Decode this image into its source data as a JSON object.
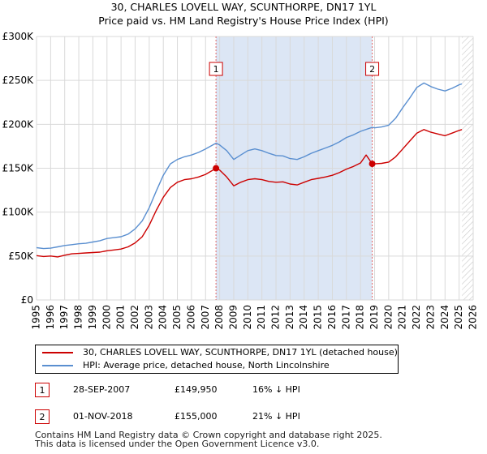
{
  "header": {
    "title": "30, CHARLES LOVELL WAY, SCUNTHORPE, DN17 1YL",
    "subtitle": "Price paid vs. HM Land Registry's House Price Index (HPI)"
  },
  "chart_data": {
    "type": "line",
    "title": "30, CHARLES LOVELL WAY, SCUNTHORPE, DN17 1YL",
    "subtitle": "Price paid vs. HM Land Registry's House Price Index (HPI)",
    "xlabel": "",
    "ylabel": "",
    "xlim": [
      1995,
      2026
    ],
    "ylim": [
      0,
      300000
    ],
    "y_ticks": [
      {
        "value": 0,
        "label": "£0"
      },
      {
        "value": 50000,
        "label": "£50K"
      },
      {
        "value": 100000,
        "label": "£100K"
      },
      {
        "value": 150000,
        "label": "£150K"
      },
      {
        "value": 200000,
        "label": "£200K"
      },
      {
        "value": 250000,
        "label": "£250K"
      },
      {
        "value": 300000,
        "label": "£300K"
      }
    ],
    "x_ticks": [
      "1995",
      "1996",
      "1997",
      "1998",
      "1999",
      "2000",
      "2001",
      "2002",
      "2003",
      "2004",
      "2005",
      "2006",
      "2007",
      "2008",
      "2009",
      "2010",
      "2011",
      "2012",
      "2013",
      "2014",
      "2015",
      "2016",
      "2017",
      "2018",
      "2019",
      "2020",
      "2021",
      "2022",
      "2023",
      "2024",
      "2025",
      "2026"
    ],
    "grid": true,
    "shaded_period": {
      "from": 2007.74,
      "to": 2018.83,
      "color": "#dce6f5"
    },
    "future_hatch_from": 2025.2,
    "series": [
      {
        "name": "30, CHARLES LOVELL WAY, SCUNTHORPE, DN17 1YL (detached house)",
        "color": "#cc0000",
        "points": [
          [
            1995.0,
            50500
          ],
          [
            1995.5,
            49500
          ],
          [
            1996.0,
            50000
          ],
          [
            1996.5,
            49000
          ],
          [
            1997.0,
            51000
          ],
          [
            1997.5,
            52500
          ],
          [
            1998.0,
            53000
          ],
          [
            1998.5,
            53500
          ],
          [
            1999.0,
            54000
          ],
          [
            1999.5,
            54500
          ],
          [
            2000.0,
            56000
          ],
          [
            2000.5,
            57000
          ],
          [
            2001.0,
            58000
          ],
          [
            2001.5,
            60500
          ],
          [
            2002.0,
            65000
          ],
          [
            2002.5,
            72000
          ],
          [
            2003.0,
            85000
          ],
          [
            2003.5,
            102000
          ],
          [
            2004.0,
            117000
          ],
          [
            2004.5,
            128000
          ],
          [
            2005.0,
            134000
          ],
          [
            2005.5,
            137000
          ],
          [
            2006.0,
            138000
          ],
          [
            2006.5,
            140000
          ],
          [
            2007.0,
            143000
          ],
          [
            2007.74,
            149950
          ],
          [
            2008.0,
            148000
          ],
          [
            2008.5,
            140000
          ],
          [
            2009.0,
            130000
          ],
          [
            2009.5,
            134000
          ],
          [
            2010.0,
            137000
          ],
          [
            2010.5,
            138000
          ],
          [
            2011.0,
            137000
          ],
          [
            2011.5,
            135000
          ],
          [
            2012.0,
            134000
          ],
          [
            2012.5,
            134500
          ],
          [
            2013.0,
            132000
          ],
          [
            2013.5,
            131000
          ],
          [
            2014.0,
            134000
          ],
          [
            2014.5,
            137000
          ],
          [
            2015.0,
            138500
          ],
          [
            2015.5,
            140000
          ],
          [
            2016.0,
            142000
          ],
          [
            2016.5,
            145000
          ],
          [
            2017.0,
            149000
          ],
          [
            2017.5,
            152000
          ],
          [
            2018.0,
            156000
          ],
          [
            2018.4,
            165000
          ],
          [
            2018.83,
            155000
          ],
          [
            2019.0,
            155000
          ],
          [
            2019.5,
            155500
          ],
          [
            2020.0,
            157000
          ],
          [
            2020.5,
            163000
          ],
          [
            2021.0,
            172000
          ],
          [
            2021.5,
            181000
          ],
          [
            2022.0,
            190000
          ],
          [
            2022.5,
            194000
          ],
          [
            2023.0,
            191000
          ],
          [
            2023.5,
            189000
          ],
          [
            2024.0,
            187000
          ],
          [
            2024.5,
            190000
          ],
          [
            2025.0,
            193000
          ],
          [
            2025.2,
            194000
          ]
        ]
      },
      {
        "name": "HPI: Average price, detached house, North Lincolnshire",
        "color": "#5a8fd0",
        "points": [
          [
            1995.0,
            59500
          ],
          [
            1995.5,
            58500
          ],
          [
            1996.0,
            59000
          ],
          [
            1996.5,
            60500
          ],
          [
            1997.0,
            62000
          ],
          [
            1997.5,
            63000
          ],
          [
            1998.0,
            64000
          ],
          [
            1998.5,
            64500
          ],
          [
            1999.0,
            66000
          ],
          [
            1999.5,
            67500
          ],
          [
            2000.0,
            70000
          ],
          [
            2000.5,
            71000
          ],
          [
            2001.0,
            72000
          ],
          [
            2001.5,
            75000
          ],
          [
            2002.0,
            81000
          ],
          [
            2002.5,
            90000
          ],
          [
            2003.0,
            105000
          ],
          [
            2003.5,
            124000
          ],
          [
            2004.0,
            142000
          ],
          [
            2004.5,
            155000
          ],
          [
            2005.0,
            160000
          ],
          [
            2005.5,
            163000
          ],
          [
            2006.0,
            165000
          ],
          [
            2006.5,
            168000
          ],
          [
            2007.0,
            172000
          ],
          [
            2007.74,
            178500
          ],
          [
            2008.0,
            176500
          ],
          [
            2008.5,
            170000
          ],
          [
            2009.0,
            160000
          ],
          [
            2009.5,
            165000
          ],
          [
            2010.0,
            170000
          ],
          [
            2010.5,
            172000
          ],
          [
            2011.0,
            170000
          ],
          [
            2011.5,
            167000
          ],
          [
            2012.0,
            164500
          ],
          [
            2012.5,
            164000
          ],
          [
            2013.0,
            161000
          ],
          [
            2013.5,
            160000
          ],
          [
            2014.0,
            163000
          ],
          [
            2014.5,
            167000
          ],
          [
            2015.0,
            170000
          ],
          [
            2015.5,
            173000
          ],
          [
            2016.0,
            176000
          ],
          [
            2016.5,
            180000
          ],
          [
            2017.0,
            185000
          ],
          [
            2017.5,
            188000
          ],
          [
            2018.0,
            192000
          ],
          [
            2018.83,
            196500
          ],
          [
            2019.0,
            196000
          ],
          [
            2019.5,
            197000
          ],
          [
            2020.0,
            199000
          ],
          [
            2020.5,
            207000
          ],
          [
            2021.0,
            219000
          ],
          [
            2021.5,
            230000
          ],
          [
            2022.0,
            242000
          ],
          [
            2022.5,
            247000
          ],
          [
            2023.0,
            243000
          ],
          [
            2023.5,
            240000
          ],
          [
            2024.0,
            238000
          ],
          [
            2024.5,
            241000
          ],
          [
            2025.0,
            245000
          ],
          [
            2025.2,
            246000
          ]
        ]
      }
    ],
    "sales": [
      {
        "label": "1",
        "year": 2007.74,
        "price": 149950
      },
      {
        "label": "2",
        "year": 2018.83,
        "price": 155000
      }
    ]
  },
  "legend": {
    "items": [
      {
        "label": "30, CHARLES LOVELL WAY, SCUNTHORPE, DN17 1YL (detached house)",
        "color": "#cc0000"
      },
      {
        "label": "HPI: Average price, detached house, North Lincolnshire",
        "color": "#5a8fd0"
      }
    ]
  },
  "sales_table": [
    {
      "badge": "1",
      "date": "28-SEP-2007",
      "price": "£149,950",
      "hpi": "16% ↓ HPI"
    },
    {
      "badge": "2",
      "date": "01-NOV-2018",
      "price": "£155,000",
      "hpi": "21% ↓ HPI"
    }
  ],
  "footer": {
    "line1": "Contains HM Land Registry data © Crown copyright and database right 2025.",
    "line2": "This data is licensed under the Open Government Licence v3.0."
  }
}
